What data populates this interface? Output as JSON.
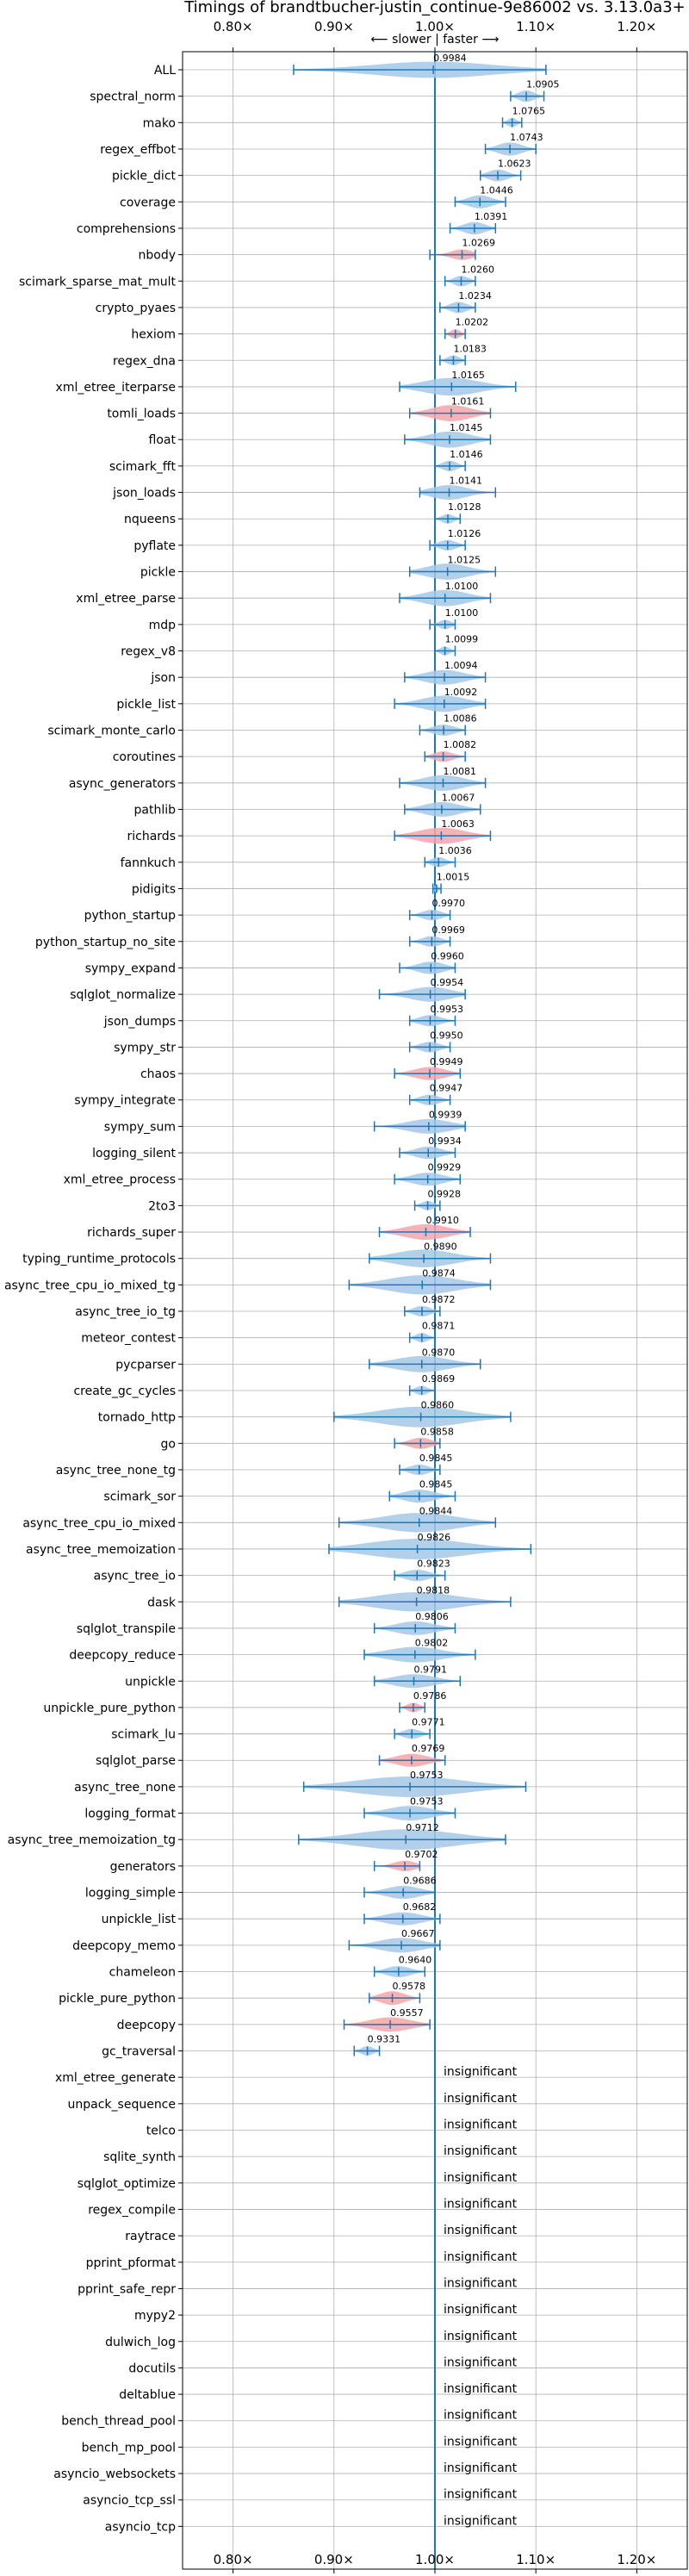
{
  "chart_data": {
    "type": "violin",
    "title": "Timings of brandtbucher-justin_continue-9e86002 vs. 3.13.0a3+",
    "direction_label": "⟵ slower | faster ⟶",
    "xlim": [
      0.75,
      1.25
    ],
    "x_ticks": [
      0.8,
      0.9,
      1.0,
      1.1,
      1.2
    ],
    "x_tick_labels": [
      "0.80×",
      "0.90×",
      "1.00×",
      "1.10×",
      "1.20×"
    ],
    "grid": true,
    "insignificant_label": "insignificant",
    "colors": {
      "normal": "#a6c8e8",
      "slower": "#f4a6aa",
      "line": "#1f77b4"
    },
    "rows": [
      {
        "name": "ALL",
        "value": 0.9984,
        "value_label": "0.9984",
        "min": 0.86,
        "max": 1.11,
        "spread": 0.03,
        "slow": false
      },
      {
        "name": "spectral_norm",
        "value": 1.0905,
        "value_label": "1.0905",
        "min": 1.075,
        "max": 1.108,
        "spread": 0.015,
        "slow": false
      },
      {
        "name": "mako",
        "value": 1.0765,
        "value_label": "1.0765",
        "min": 1.067,
        "max": 1.086,
        "spread": 0.008,
        "slow": false
      },
      {
        "name": "regex_effbot",
        "value": 1.0743,
        "value_label": "1.0743",
        "min": 1.05,
        "max": 1.1,
        "spread": 0.02,
        "slow": false
      },
      {
        "name": "pickle_dict",
        "value": 1.0623,
        "value_label": "1.0623",
        "min": 1.045,
        "max": 1.085,
        "spread": 0.016,
        "slow": false
      },
      {
        "name": "coverage",
        "value": 1.0446,
        "value_label": "1.0446",
        "min": 1.02,
        "max": 1.07,
        "spread": 0.02,
        "slow": false
      },
      {
        "name": "comprehensions",
        "value": 1.0391,
        "value_label": "1.0391",
        "min": 1.015,
        "max": 1.06,
        "spread": 0.018,
        "slow": false
      },
      {
        "name": "nbody",
        "value": 1.0269,
        "value_label": "1.0269",
        "min": 0.995,
        "max": 1.04,
        "spread": 0.012,
        "slow": true
      },
      {
        "name": "scimark_sparse_mat_mult",
        "value": 1.026,
        "value_label": "1.0260",
        "min": 1.01,
        "max": 1.04,
        "spread": 0.012,
        "slow": false
      },
      {
        "name": "crypto_pyaes",
        "value": 1.0234,
        "value_label": "1.0234",
        "min": 1.005,
        "max": 1.04,
        "spread": 0.014,
        "slow": false
      },
      {
        "name": "hexiom",
        "value": 1.0202,
        "value_label": "1.0202",
        "min": 1.01,
        "max": 1.03,
        "spread": 0.008,
        "slow": true
      },
      {
        "name": "regex_dna",
        "value": 1.0183,
        "value_label": "1.0183",
        "min": 1.005,
        "max": 1.03,
        "spread": 0.01,
        "slow": false
      },
      {
        "name": "xml_etree_iterparse",
        "value": 1.0165,
        "value_label": "1.0165",
        "min": 0.965,
        "max": 1.08,
        "spread": 0.035,
        "slow": false
      },
      {
        "name": "tomli_loads",
        "value": 1.0161,
        "value_label": "1.0161",
        "min": 0.975,
        "max": 1.055,
        "spread": 0.03,
        "slow": true
      },
      {
        "name": "float",
        "value": 1.0145,
        "value_label": "1.0145",
        "min": 0.97,
        "max": 1.055,
        "spread": 0.03,
        "slow": false
      },
      {
        "name": "scimark_fft",
        "value": 1.0146,
        "value_label": "1.0146",
        "min": 1.0,
        "max": 1.03,
        "spread": 0.012,
        "slow": false
      },
      {
        "name": "json_loads",
        "value": 1.0141,
        "value_label": "1.0141",
        "min": 0.985,
        "max": 1.06,
        "spread": 0.025,
        "slow": false
      },
      {
        "name": "nqueens",
        "value": 1.0128,
        "value_label": "1.0128",
        "min": 1.0,
        "max": 1.025,
        "spread": 0.008,
        "slow": false
      },
      {
        "name": "pyflate",
        "value": 1.0126,
        "value_label": "1.0126",
        "min": 0.995,
        "max": 1.03,
        "spread": 0.012,
        "slow": false
      },
      {
        "name": "pickle",
        "value": 1.0125,
        "value_label": "1.0125",
        "min": 0.975,
        "max": 1.06,
        "spread": 0.03,
        "slow": false
      },
      {
        "name": "xml_etree_parse",
        "value": 1.01,
        "value_label": "1.0100",
        "min": 0.965,
        "max": 1.055,
        "spread": 0.03,
        "slow": false
      },
      {
        "name": "mdp",
        "value": 1.01,
        "value_label": "1.0100",
        "min": 0.995,
        "max": 1.02,
        "spread": 0.008,
        "slow": false
      },
      {
        "name": "regex_v8",
        "value": 1.0099,
        "value_label": "1.0099",
        "min": 1.0,
        "max": 1.02,
        "spread": 0.006,
        "slow": false
      },
      {
        "name": "json",
        "value": 1.0094,
        "value_label": "1.0094",
        "min": 0.97,
        "max": 1.05,
        "spread": 0.025,
        "slow": false
      },
      {
        "name": "pickle_list",
        "value": 1.0092,
        "value_label": "1.0092",
        "min": 0.96,
        "max": 1.05,
        "spread": 0.03,
        "slow": false
      },
      {
        "name": "scimark_monte_carlo",
        "value": 1.0086,
        "value_label": "1.0086",
        "min": 0.985,
        "max": 1.03,
        "spread": 0.014,
        "slow": false
      },
      {
        "name": "coroutines",
        "value": 1.0082,
        "value_label": "1.0082",
        "min": 0.99,
        "max": 1.03,
        "spread": 0.012,
        "slow": true
      },
      {
        "name": "async_generators",
        "value": 1.0081,
        "value_label": "1.0081",
        "min": 0.965,
        "max": 1.05,
        "spread": 0.028,
        "slow": false
      },
      {
        "name": "pathlib",
        "value": 1.0067,
        "value_label": "1.0067",
        "min": 0.97,
        "max": 1.045,
        "spread": 0.025,
        "slow": false
      },
      {
        "name": "richards",
        "value": 1.0063,
        "value_label": "1.0063",
        "min": 0.96,
        "max": 1.055,
        "spread": 0.03,
        "slow": true
      },
      {
        "name": "fannkuch",
        "value": 1.0036,
        "value_label": "1.0036",
        "min": 0.99,
        "max": 1.02,
        "spread": 0.01,
        "slow": false
      },
      {
        "name": "pidigits",
        "value": 1.0015,
        "value_label": "1.0015",
        "min": 0.998,
        "max": 1.006,
        "spread": 0.003,
        "slow": false
      },
      {
        "name": "python_startup",
        "value": 0.997,
        "value_label": "0.9970",
        "min": 0.975,
        "max": 1.015,
        "spread": 0.012,
        "slow": false
      },
      {
        "name": "python_startup_no_site",
        "value": 0.9969,
        "value_label": "0.9969",
        "min": 0.975,
        "max": 1.015,
        "spread": 0.012,
        "slow": false
      },
      {
        "name": "sympy_expand",
        "value": 0.996,
        "value_label": "0.9960",
        "min": 0.965,
        "max": 1.02,
        "spread": 0.018,
        "slow": false
      },
      {
        "name": "sqlglot_normalize",
        "value": 0.9954,
        "value_label": "0.9954",
        "min": 0.945,
        "max": 1.03,
        "spread": 0.025,
        "slow": false
      },
      {
        "name": "json_dumps",
        "value": 0.9953,
        "value_label": "0.9953",
        "min": 0.975,
        "max": 1.02,
        "spread": 0.014,
        "slow": false
      },
      {
        "name": "sympy_str",
        "value": 0.995,
        "value_label": "0.9950",
        "min": 0.975,
        "max": 1.015,
        "spread": 0.012,
        "slow": false
      },
      {
        "name": "chaos",
        "value": 0.9949,
        "value_label": "0.9949",
        "min": 0.96,
        "max": 1.025,
        "spread": 0.02,
        "slow": true
      },
      {
        "name": "sympy_integrate",
        "value": 0.9947,
        "value_label": "0.9947",
        "min": 0.975,
        "max": 1.015,
        "spread": 0.012,
        "slow": false
      },
      {
        "name": "sympy_sum",
        "value": 0.9939,
        "value_label": "0.9939",
        "min": 0.94,
        "max": 1.03,
        "spread": 0.025,
        "slow": false
      },
      {
        "name": "logging_silent",
        "value": 0.9934,
        "value_label": "0.9934",
        "min": 0.965,
        "max": 1.02,
        "spread": 0.018,
        "slow": false
      },
      {
        "name": "xml_etree_process",
        "value": 0.9929,
        "value_label": "0.9929",
        "min": 0.96,
        "max": 1.025,
        "spread": 0.02,
        "slow": false
      },
      {
        "name": "2to3",
        "value": 0.9928,
        "value_label": "0.9928",
        "min": 0.98,
        "max": 1.005,
        "spread": 0.008,
        "slow": false
      },
      {
        "name": "richards_super",
        "value": 0.991,
        "value_label": "0.9910",
        "min": 0.945,
        "max": 1.035,
        "spread": 0.028,
        "slow": true
      },
      {
        "name": "typing_runtime_protocols",
        "value": 0.989,
        "value_label": "0.9890",
        "min": 0.935,
        "max": 1.055,
        "spread": 0.035,
        "slow": false
      },
      {
        "name": "async_tree_cpu_io_mixed_tg",
        "value": 0.9874,
        "value_label": "0.9874",
        "min": 0.915,
        "max": 1.055,
        "spread": 0.04,
        "slow": false
      },
      {
        "name": "async_tree_io_tg",
        "value": 0.9872,
        "value_label": "0.9872",
        "min": 0.97,
        "max": 1.005,
        "spread": 0.012,
        "slow": false
      },
      {
        "name": "meteor_contest",
        "value": 0.9871,
        "value_label": "0.9871",
        "min": 0.975,
        "max": 1.0,
        "spread": 0.008,
        "slow": false
      },
      {
        "name": "pycparser",
        "value": 0.987,
        "value_label": "0.9870",
        "min": 0.935,
        "max": 1.045,
        "spread": 0.03,
        "slow": false
      },
      {
        "name": "create_gc_cycles",
        "value": 0.9869,
        "value_label": "0.9869",
        "min": 0.975,
        "max": 1.0,
        "spread": 0.008,
        "slow": false
      },
      {
        "name": "tornado_http",
        "value": 0.986,
        "value_label": "0.9860",
        "min": 0.9,
        "max": 1.075,
        "spread": 0.045,
        "slow": false
      },
      {
        "name": "go",
        "value": 0.9858,
        "value_label": "0.9858",
        "min": 0.96,
        "max": 1.005,
        "spread": 0.014,
        "slow": true
      },
      {
        "name": "async_tree_none_tg",
        "value": 0.9845,
        "value_label": "0.9845",
        "min": 0.965,
        "max": 1.005,
        "spread": 0.012,
        "slow": false
      },
      {
        "name": "scimark_sor",
        "value": 0.9845,
        "value_label": "0.9845",
        "min": 0.955,
        "max": 1.02,
        "spread": 0.02,
        "slow": false
      },
      {
        "name": "async_tree_cpu_io_mixed",
        "value": 0.9844,
        "value_label": "0.9844",
        "min": 0.905,
        "max": 1.06,
        "spread": 0.04,
        "slow": false
      },
      {
        "name": "async_tree_memoization",
        "value": 0.9826,
        "value_label": "0.9826",
        "min": 0.895,
        "max": 1.095,
        "spread": 0.05,
        "slow": false
      },
      {
        "name": "async_tree_io",
        "value": 0.9823,
        "value_label": "0.9823",
        "min": 0.96,
        "max": 1.01,
        "spread": 0.015,
        "slow": false
      },
      {
        "name": "dask",
        "value": 0.9818,
        "value_label": "0.9818",
        "min": 0.905,
        "max": 1.075,
        "spread": 0.04,
        "slow": false
      },
      {
        "name": "sqlglot_transpile",
        "value": 0.9806,
        "value_label": "0.9806",
        "min": 0.94,
        "max": 1.02,
        "spread": 0.022,
        "slow": false
      },
      {
        "name": "deepcopy_reduce",
        "value": 0.9802,
        "value_label": "0.9802",
        "min": 0.93,
        "max": 1.04,
        "spread": 0.028,
        "slow": false
      },
      {
        "name": "unpickle",
        "value": 0.9791,
        "value_label": "0.9791",
        "min": 0.94,
        "max": 1.025,
        "spread": 0.022,
        "slow": false
      },
      {
        "name": "unpickle_pure_python",
        "value": 0.9786,
        "value_label": "0.9786",
        "min": 0.965,
        "max": 0.99,
        "spread": 0.008,
        "slow": true
      },
      {
        "name": "scimark_lu",
        "value": 0.9771,
        "value_label": "0.9771",
        "min": 0.96,
        "max": 0.995,
        "spread": 0.01,
        "slow": false
      },
      {
        "name": "sqlglot_parse",
        "value": 0.9769,
        "value_label": "0.9769",
        "min": 0.945,
        "max": 1.01,
        "spread": 0.02,
        "slow": true
      },
      {
        "name": "async_tree_none",
        "value": 0.9753,
        "value_label": "0.9753",
        "min": 0.87,
        "max": 1.09,
        "spread": 0.05,
        "slow": false
      },
      {
        "name": "logging_format",
        "value": 0.9753,
        "value_label": "0.9753",
        "min": 0.93,
        "max": 1.02,
        "spread": 0.025,
        "slow": false
      },
      {
        "name": "async_tree_memoization_tg",
        "value": 0.9712,
        "value_label": "0.9712",
        "min": 0.865,
        "max": 1.07,
        "spread": 0.05,
        "slow": false
      },
      {
        "name": "generators",
        "value": 0.9702,
        "value_label": "0.9702",
        "min": 0.94,
        "max": 0.985,
        "spread": 0.012,
        "slow": true
      },
      {
        "name": "logging_simple",
        "value": 0.9686,
        "value_label": "0.9686",
        "min": 0.93,
        "max": 1.0,
        "spread": 0.02,
        "slow": false
      },
      {
        "name": "unpickle_list",
        "value": 0.9682,
        "value_label": "0.9682",
        "min": 0.93,
        "max": 1.005,
        "spread": 0.02,
        "slow": false
      },
      {
        "name": "deepcopy_memo",
        "value": 0.9667,
        "value_label": "0.9667",
        "min": 0.915,
        "max": 1.005,
        "spread": 0.025,
        "slow": false
      },
      {
        "name": "chameleon",
        "value": 0.964,
        "value_label": "0.9640",
        "min": 0.94,
        "max": 0.99,
        "spread": 0.014,
        "slow": false
      },
      {
        "name": "pickle_pure_python",
        "value": 0.9578,
        "value_label": "0.9578",
        "min": 0.935,
        "max": 0.985,
        "spread": 0.022,
        "slow": true
      },
      {
        "name": "deepcopy",
        "value": 0.9557,
        "value_label": "0.9557",
        "min": 0.91,
        "max": 0.995,
        "spread": 0.024,
        "slow": true
      },
      {
        "name": "gc_traversal",
        "value": 0.9331,
        "value_label": "0.9331",
        "min": 0.92,
        "max": 0.945,
        "spread": 0.008,
        "slow": false
      },
      {
        "name": "xml_etree_generate",
        "insignificant": true
      },
      {
        "name": "unpack_sequence",
        "insignificant": true
      },
      {
        "name": "telco",
        "insignificant": true
      },
      {
        "name": "sqlite_synth",
        "insignificant": true
      },
      {
        "name": "sqlglot_optimize",
        "insignificant": true
      },
      {
        "name": "regex_compile",
        "insignificant": true
      },
      {
        "name": "raytrace",
        "insignificant": true
      },
      {
        "name": "pprint_pformat",
        "insignificant": true
      },
      {
        "name": "pprint_safe_repr",
        "insignificant": true
      },
      {
        "name": "mypy2",
        "insignificant": true
      },
      {
        "name": "dulwich_log",
        "insignificant": true
      },
      {
        "name": "docutils",
        "insignificant": true
      },
      {
        "name": "deltablue",
        "insignificant": true
      },
      {
        "name": "bench_thread_pool",
        "insignificant": true
      },
      {
        "name": "bench_mp_pool",
        "insignificant": true
      },
      {
        "name": "asyncio_websockets",
        "insignificant": true
      },
      {
        "name": "asyncio_tcp_ssl",
        "insignificant": true
      },
      {
        "name": "asyncio_tcp",
        "insignificant": true
      }
    ]
  }
}
